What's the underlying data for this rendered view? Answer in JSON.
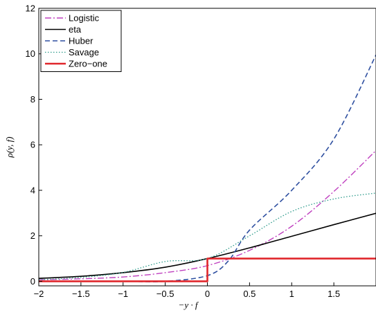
{
  "chart_data": {
    "type": "line",
    "xlabel": "−y · f",
    "ylabel": "ρ(y, f)",
    "xlim": [
      -2,
      2
    ],
    "ylim": [
      -0.2,
      12
    ],
    "xticks": [
      -2,
      -1.5,
      -1,
      -0.5,
      0,
      0.5,
      1,
      1.5
    ],
    "xtick_labels": [
      "−2",
      "−1.5",
      "−1",
      "−0.5",
      "0",
      "0.5",
      "1",
      "1.5"
    ],
    "yticks": [
      0,
      2,
      4,
      6,
      8,
      10,
      12
    ],
    "ytick_labels": [
      "0",
      "2",
      "4",
      "6",
      "8",
      "10",
      "12"
    ],
    "grid": false,
    "legend_position": "top-left",
    "series": [
      {
        "name": "Logistic",
        "color": "#bf3fbf",
        "style": "dashdot",
        "x": [
          -2,
          -1.5,
          -1,
          -0.5,
          0,
          0.5,
          1,
          1.5,
          2
        ],
        "y": [
          0.07,
          0.11,
          0.19,
          0.38,
          0.69,
          1.36,
          2.42,
          3.95,
          5.75
        ]
      },
      {
        "name": "eta",
        "color": "#000000",
        "style": "solid",
        "x": [
          -2,
          -1.5,
          -1,
          -0.5,
          0,
          0.5,
          1,
          1.5,
          2
        ],
        "y": [
          0.13,
          0.22,
          0.38,
          0.62,
          1.0,
          1.47,
          1.98,
          2.49,
          2.99
        ]
      },
      {
        "name": "Huber",
        "color": "#2e4fa0",
        "style": "dashed",
        "x": [
          -2,
          -1.5,
          -1,
          -0.5,
          0,
          0.25,
          0.5,
          1,
          1.5,
          2
        ],
        "y": [
          0,
          0,
          0,
          0,
          0.25,
          0.9,
          2.25,
          4.0,
          6.25,
          9.95
        ]
      },
      {
        "name": "Savage",
        "color": "#2b9a8a",
        "style": "dotted",
        "x": [
          -2,
          -1.5,
          -1,
          -0.5,
          0,
          0.5,
          1,
          1.5,
          2
        ],
        "y": [
          0.07,
          0.17,
          0.39,
          0.87,
          1.0,
          2.0,
          3.07,
          3.62,
          3.88
        ]
      },
      {
        "name": "Zero−one",
        "color": "#e0262b",
        "style": "step",
        "x": [
          -2,
          0,
          0,
          2
        ],
        "y": [
          0,
          0,
          1,
          1
        ]
      }
    ]
  }
}
